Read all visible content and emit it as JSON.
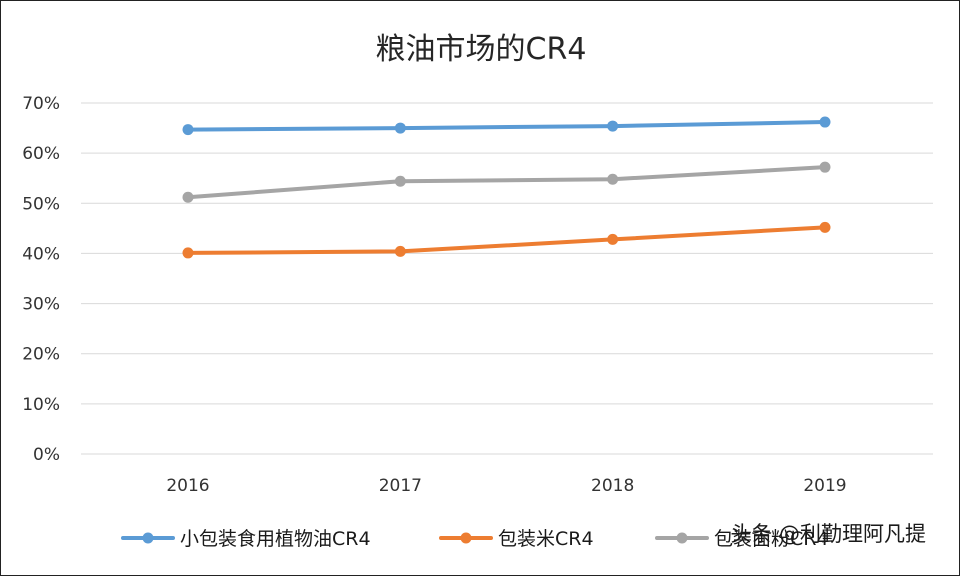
{
  "chart_data": {
    "type": "line",
    "title": "粮油市场的CR4",
    "categories": [
      "2016",
      "2017",
      "2018",
      "2019"
    ],
    "y_ticks": [
      "0%",
      "10%",
      "20%",
      "30%",
      "40%",
      "50%",
      "60%",
      "70%"
    ],
    "ylim": [
      0,
      70
    ],
    "grid": true,
    "legend_position": "bottom",
    "series": [
      {
        "name": "小包装食用植物油CR4",
        "color": "#5b9bd5",
        "values": [
          64.7,
          65.0,
          65.4,
          66.2
        ]
      },
      {
        "name": "包装米CR4",
        "color": "#ed7d31",
        "values": [
          40.1,
          40.4,
          42.8,
          45.2
        ]
      },
      {
        "name": "包装面粉CR4",
        "color": "#a5a5a5",
        "values": [
          51.2,
          54.4,
          54.8,
          57.2
        ]
      }
    ]
  },
  "watermark": "头条 @利勤理阿凡提"
}
